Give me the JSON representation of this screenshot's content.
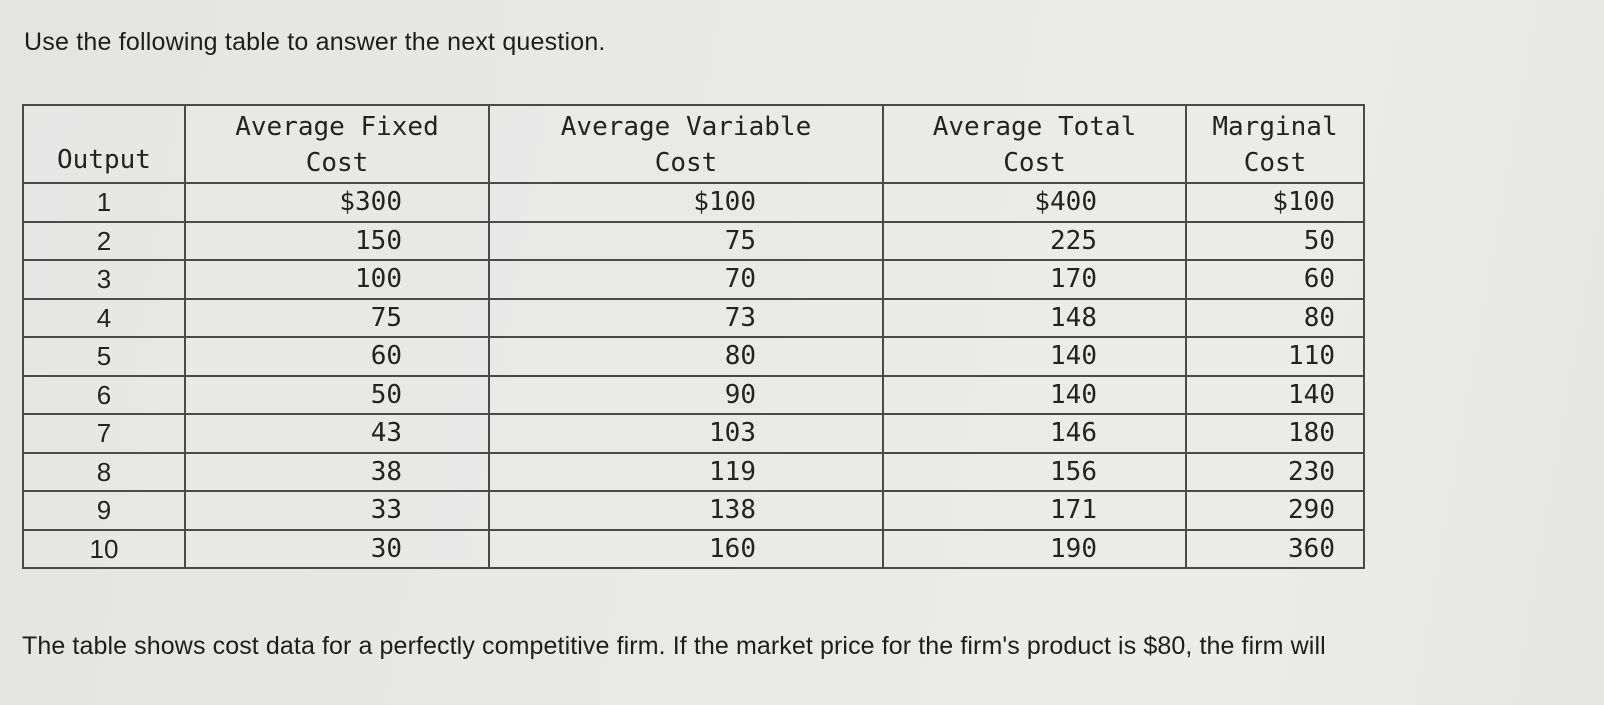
{
  "intro": "Use the following table to answer the next question.",
  "table": {
    "headers": [
      [
        "",
        "Output"
      ],
      [
        "Average Fixed",
        "Cost"
      ],
      [
        "Average Variable",
        "Cost"
      ],
      [
        "Average Total",
        "Cost"
      ],
      [
        "Marginal",
        "Cost"
      ]
    ],
    "rows": [
      [
        "1",
        "$300",
        "$100",
        "$400",
        "$100"
      ],
      [
        "2",
        "150",
        "75",
        "225",
        "50"
      ],
      [
        "3",
        "100",
        "70",
        "170",
        "60"
      ],
      [
        "4",
        "75",
        "73",
        "148",
        "80"
      ],
      [
        "5",
        "60",
        "80",
        "140",
        "110"
      ],
      [
        "6",
        "50",
        "90",
        "140",
        "140"
      ],
      [
        "7",
        "43",
        "103",
        "146",
        "180"
      ],
      [
        "8",
        "38",
        "119",
        "156",
        "230"
      ],
      [
        "9",
        "33",
        "138",
        "171",
        "290"
      ],
      [
        "10",
        "30",
        "160",
        "190",
        "360"
      ]
    ]
  },
  "question": "The table shows cost data for a perfectly competitive firm. If the market price for the firm's product is $80, the firm will"
}
